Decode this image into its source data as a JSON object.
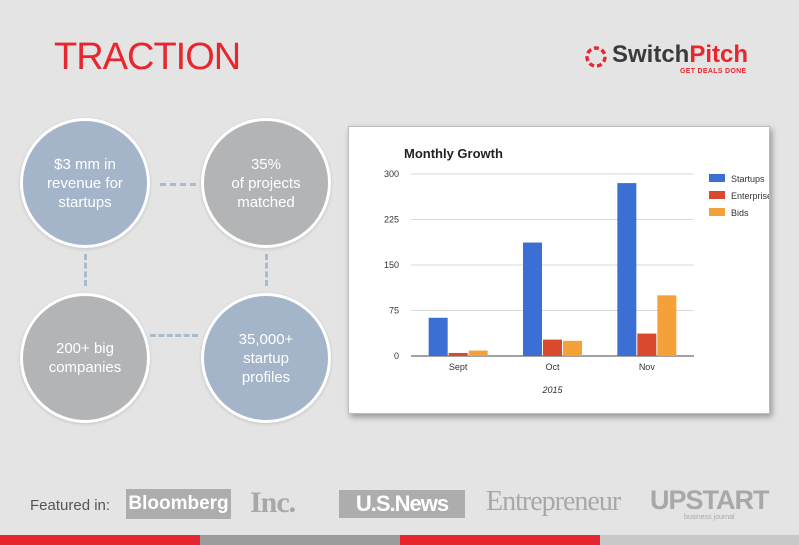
{
  "slide": {
    "title": "TRACTION"
  },
  "logo": {
    "name_part1": "Switch",
    "name_part2": "Pitch",
    "tagline": "GET DEALS DONE"
  },
  "colors": {
    "accent": "#e8262d",
    "circle_blue": "#a4b5ca",
    "circle_gray": "#b3b4b6"
  },
  "metrics": [
    {
      "text": "$3 mm in\nrevenue for\nstartups"
    },
    {
      "text": "35%\nof projects\nmatched"
    },
    {
      "text": "200+ big\ncompanies"
    },
    {
      "text": "35,000+\nstartup\nprofiles"
    }
  ],
  "chart_data": {
    "type": "bar",
    "title": "Monthly Growth",
    "xlabel": "2015",
    "ylabel": "",
    "categories": [
      "Sept",
      "Oct",
      "Nov"
    ],
    "series": [
      {
        "name": "Startups",
        "color": "#3b6fd4",
        "values": [
          63,
          187,
          285
        ]
      },
      {
        "name": "Enterprise",
        "color": "#d84a2b",
        "values": [
          5,
          27,
          37
        ]
      },
      {
        "name": "Bids",
        "color": "#f4a13a",
        "values": [
          9,
          25,
          100
        ]
      }
    ],
    "ylim": [
      0,
      300
    ],
    "yticks": [
      0,
      75,
      150,
      225,
      300
    ],
    "grid": true,
    "legend": "right"
  },
  "featured": {
    "label": "Featured in:",
    "brands": {
      "bloomberg": "Bloomberg",
      "inc": "Inc.",
      "usnews": "U.S.News",
      "entrepreneur": "Entrepreneur",
      "upstart": "UPSTART",
      "upstart_sub": "business journal"
    }
  },
  "footer_colors": [
    "#e8262d",
    "#9b9b9b",
    "#e8262d",
    "#c7c7c7"
  ]
}
